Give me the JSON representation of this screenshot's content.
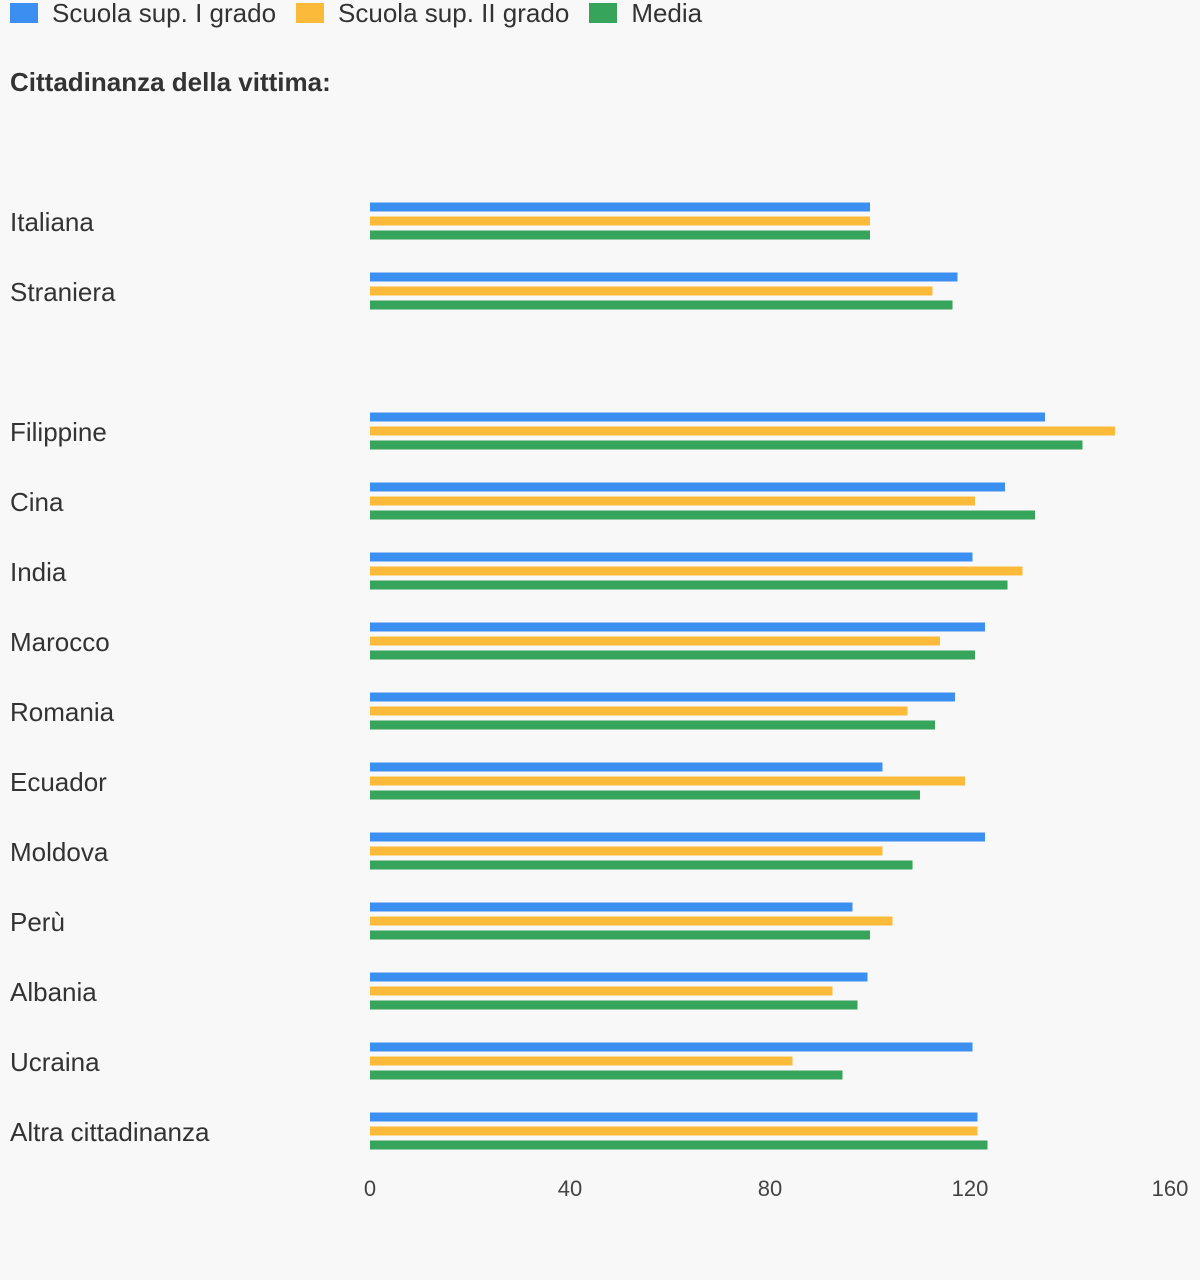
{
  "legend": [
    {
      "name": "Scuola sup. I grado",
      "color": "#3b8ff0"
    },
    {
      "name": "Scuola sup. II grado",
      "color": "#fbba3a"
    },
    {
      "name": "Media",
      "color": "#36a45a"
    }
  ],
  "chart_data": {
    "type": "bar",
    "orientation": "horizontal",
    "title": "Cittadinanza della vittima:",
    "xlabel": "",
    "ylabel": "",
    "xlim": [
      0,
      160
    ],
    "xticks": [
      "0",
      "40",
      "80",
      "120",
      "160"
    ],
    "grid": false,
    "legend_position": "top-left",
    "groups": [
      {
        "categories": [
          "Italiana",
          "Straniera"
        ]
      },
      {
        "categories": [
          "Filippine",
          "Cina",
          "India",
          "Marocco",
          "Romania",
          "Ecuador",
          "Moldova",
          "Perù",
          "Albania",
          "Ucraina",
          "Altra cittadinanza"
        ]
      }
    ],
    "categories": [
      "Italiana",
      "Straniera",
      "Filippine",
      "Cina",
      "India",
      "Marocco",
      "Romania",
      "Ecuador",
      "Moldova",
      "Perù",
      "Albania",
      "Ucraina",
      "Altra cittadinanza"
    ],
    "series": [
      {
        "name": "Scuola sup. I grado",
        "color": "#3b8ff0",
        "values": [
          100,
          117.5,
          135,
          127,
          120.5,
          123,
          117,
          102.5,
          123,
          96.5,
          99.5,
          120.5,
          121.5
        ]
      },
      {
        "name": "Scuola sup. II grado",
        "color": "#fbba3a",
        "values": [
          100,
          112.5,
          149,
          121,
          130.5,
          114,
          107.5,
          119,
          102.5,
          104.5,
          92.5,
          84.5,
          121.5
        ]
      },
      {
        "name": "Media",
        "color": "#36a45a",
        "values": [
          100,
          116.5,
          142.5,
          133,
          127.5,
          121,
          113,
          110,
          108.5,
          100,
          97.5,
          94.5,
          123.5
        ]
      }
    ]
  }
}
